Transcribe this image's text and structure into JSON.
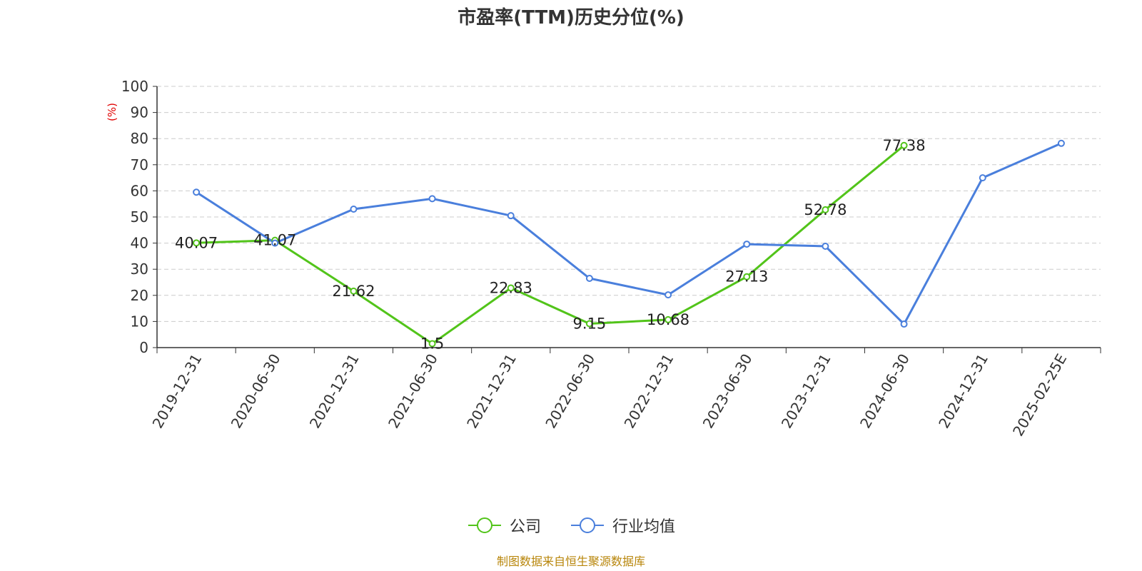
{
  "chart_data": {
    "type": "line",
    "title": "市盈率(TTM)历史分位(%)",
    "ylabel": "(%)",
    "xlabel": "",
    "ylim": [
      0,
      100
    ],
    "yticks": [
      0,
      10,
      20,
      30,
      40,
      50,
      60,
      70,
      80,
      90,
      100
    ],
    "categories": [
      "2019-12-31",
      "2020-06-30",
      "2020-12-31",
      "2021-06-30",
      "2021-12-31",
      "2022-06-30",
      "2022-12-31",
      "2023-06-30",
      "2023-12-31",
      "2024-06-30",
      "2024-12-31",
      "2025-02-25E"
    ],
    "grid": true,
    "legend_position": "bottom",
    "series": [
      {
        "name": "公司",
        "color": "#52c41a",
        "labels": true,
        "values": [
          40.07,
          41.07,
          21.62,
          1.5,
          22.83,
          9.15,
          10.68,
          27.13,
          52.78,
          77.38,
          null,
          null
        ]
      },
      {
        "name": "行业均值",
        "color": "#4a7fdc",
        "labels": false,
        "values": [
          59.5,
          40.0,
          53.0,
          57.0,
          50.5,
          26.5,
          20.2,
          39.6,
          38.8,
          9.0,
          65.0,
          78.2
        ]
      }
    ]
  },
  "source": "制图数据来自恒生聚源数据库"
}
